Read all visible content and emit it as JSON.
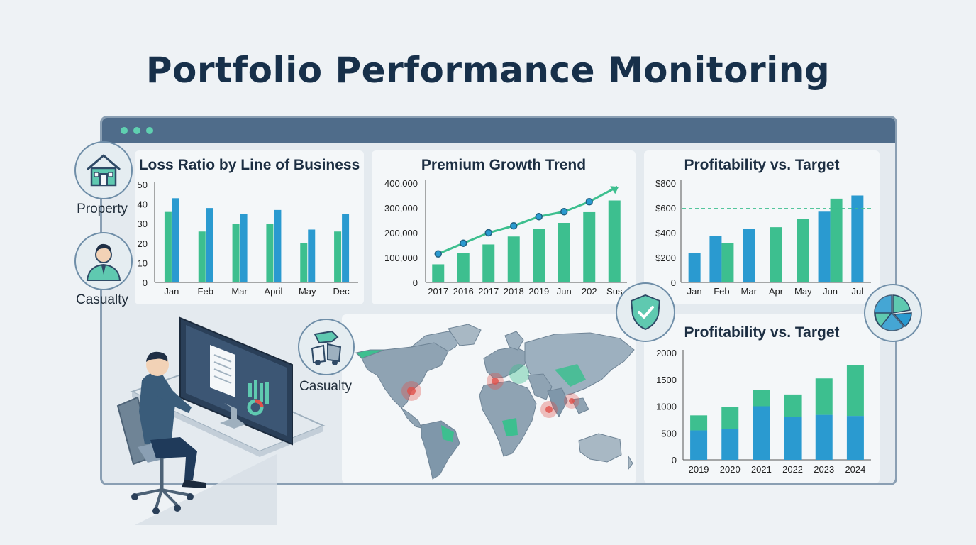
{
  "page": {
    "title": "Portfolio Performance Monitoring"
  },
  "icons": {
    "property_label": "Property",
    "casualty_label": "Casualty",
    "casualty_map_label": "Casualty"
  },
  "colors": {
    "teal": "#3dbf8f",
    "blue": "#2a9ad0",
    "navy": "#17304a"
  },
  "chart_data": [
    {
      "id": "loss_ratio",
      "type": "bar",
      "title": "Loss Ratio by Line of Business",
      "categories": [
        "Jan",
        "Feb",
        "Mar",
        "April",
        "May",
        "Dec"
      ],
      "series": [
        {
          "values": [
            36,
            26,
            30,
            30,
            20,
            26
          ],
          "color": "#3dbf8f"
        },
        {
          "values": [
            43,
            38,
            35,
            37,
            27,
            35
          ],
          "color": "#2a9ad0"
        }
      ],
      "ylim": [
        0,
        50
      ],
      "yticks": [
        "0",
        "10",
        "20",
        "30",
        "40",
        "50"
      ]
    },
    {
      "id": "premium_growth",
      "type": "bar",
      "title": "Premium Growth Trend",
      "categories": [
        "2017",
        "2016",
        "2017",
        "2018",
        "2019",
        "Jun",
        "202",
        "Sus"
      ],
      "values": [
        73000,
        118000,
        153000,
        185000,
        215000,
        240000,
        283000,
        330000
      ],
      "line_values": [
        115000,
        158000,
        200000,
        228000,
        265000,
        285000,
        325000,
        385000
      ],
      "ylim": [
        0,
        400000
      ],
      "yticks": [
        "0",
        "100,000",
        "200,000",
        "300,000",
        "400,000"
      ]
    },
    {
      "id": "profitability_monthly",
      "type": "bar",
      "title": "Profitability vs. Target",
      "categories": [
        "Jan",
        "Feb",
        "Mar",
        "Apr",
        "May",
        "Jun",
        "Jul"
      ],
      "series": [
        {
          "values": [
            240,
            375,
            430,
            445,
            510,
            570,
            700
          ]
        },
        {
          "values": [
            null,
            320,
            null,
            null,
            null,
            675,
            null
          ]
        }
      ],
      "target": 595,
      "ylim": [
        0,
        800
      ],
      "yticks": [
        "0",
        "$200",
        "$400",
        "$600",
        "$800"
      ]
    },
    {
      "id": "profitability_yearly",
      "type": "bar",
      "title": "Profitability vs. Target",
      "categories": [
        "2019",
        "2020",
        "2021",
        "2022",
        "2023",
        "2024"
      ],
      "series": [
        {
          "name": "",
          "values": [
            550,
            580,
            1000,
            800,
            840,
            820
          ]
        },
        {
          "name": "",
          "values": [
            280,
            410,
            300,
            420,
            680,
            950
          ]
        }
      ],
      "stacked": true,
      "ylim": [
        0,
        2000
      ],
      "yticks": [
        "0",
        "500",
        "1000",
        "1500",
        "2000"
      ]
    }
  ]
}
